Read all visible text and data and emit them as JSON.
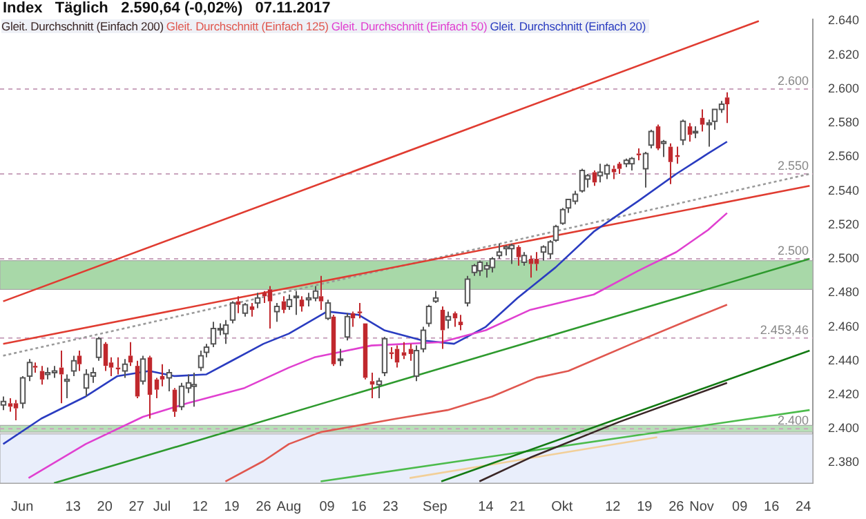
{
  "chart_data": {
    "type": "candlestick",
    "title": "Index   Täglich   2.590,64 (-0,02%)   07.11.2017",
    "colors": [
      "#ffffff",
      "#c0282d",
      "#c0282d",
      "#ffffff",
      "#ffffff",
      "#c0282d",
      "#c0282d",
      "#ffffff",
      "#ffffff",
      "#c0282d",
      "#ffffff",
      "#ffffff",
      "#c0282d",
      "#ffffff",
      "#ffffff",
      "#ffffff",
      "#c0282d",
      "#c0282d",
      "#c0282d",
      "#ffffff",
      "#c0282d",
      "#c0282d",
      "#ffffff",
      "#c0282d",
      "#c0282d",
      "#c0282d",
      "#ffffff",
      "#c0282d",
      "#ffffff",
      "#ffffff",
      "#ffffff",
      "#ffffff",
      "#ffffff",
      "#ffffff",
      "#ffffff",
      "#ffffff",
      "#ffffff",
      "#c0282d",
      "#ffffff",
      "#c0282d",
      "#ffffff",
      "#c0282d",
      "#c0282d",
      "#ffffff",
      "#c0282d",
      "#ffffff",
      "#ffffff",
      "#c0282d",
      "#ffffff",
      "#ffffff",
      "#c0282d",
      "#ffffff",
      "#c0282d",
      "#ffffff",
      "#ffffff",
      "#c0282d",
      "#c0282d",
      "#c0282d",
      "#c0282d",
      "#ffffff",
      "#ffffff",
      "#c0282d",
      "#c0282d",
      "#c0282d",
      "#c0282d",
      "#ffffff",
      "#ffffff",
      "#ffffff",
      "#ffffff",
      "#c0282d",
      "#ffffff",
      "#c0282d",
      "#c0282d",
      "#ffffff",
      "#ffffff",
      "#ffffff",
      "#ffffff",
      "#ffffff",
      "#ffffff",
      "#ffffff",
      "#ffffff",
      "#c0282d",
      "#ffffff",
      "#c0282d",
      "#c0282d",
      "#ffffff",
      "#ffffff",
      "#ffffff",
      "#ffffff",
      "#ffffff",
      "#ffffff",
      "#ffffff",
      "#ffffff",
      "#c0282d",
      "#ffffff",
      "#ffffff",
      "#c0282d",
      "#c0282d",
      "#ffffff",
      "#ffffff",
      "#c0282d",
      "#ffffff",
      "#ffffff",
      "#c0282d",
      "#ffffff",
      "#c0282d",
      "#c0282d",
      "#ffffff",
      "#c0282d",
      "#ffffff",
      "#c0282d",
      "#ffffff",
      "#ffffff",
      "#ffffff",
      "#c0282d",
      null,
      null,
      null,
      null,
      null,
      null,
      null,
      null,
      null,
      null,
      null,
      null,
      null
    ],
    "categories": [
      null,
      null,
      null,
      "Jun",
      null,
      null,
      null,
      null,
      null,
      null,
      null,
      "13",
      null,
      null,
      null,
      null,
      "20",
      null,
      null,
      null,
      null,
      "27",
      null,
      null,
      null,
      "Jul",
      null,
      null,
      null,
      null,
      null,
      "12",
      null,
      null,
      null,
      null,
      "19",
      null,
      null,
      null,
      null,
      "26",
      null,
      null,
      null,
      "Aug",
      null,
      null,
      null,
      null,
      null,
      "09",
      null,
      null,
      null,
      null,
      "16",
      null,
      null,
      null,
      null,
      "23",
      null,
      null,
      null,
      null,
      null,
      null,
      "Sep",
      null,
      null,
      null,
      null,
      null,
      null,
      null,
      "14",
      null,
      null,
      null,
      null,
      "21",
      null,
      null,
      null,
      null,
      null,
      null,
      "Okt",
      null,
      null,
      null,
      null,
      null,
      null,
      null,
      "12",
      null,
      null,
      null,
      null,
      "19",
      null,
      null,
      null,
      null,
      "26",
      null,
      null,
      null,
      "Nov",
      null,
      null,
      null,
      null,
      null,
      "09",
      null,
      null,
      null,
      null,
      "16",
      null,
      null,
      null,
      null,
      "24",
      null
    ],
    "ohlc": [
      [
        2414,
        2419,
        2411,
        2416
      ],
      [
        2415,
        2418,
        2410,
        2413
      ],
      [
        2415,
        2417,
        2405,
        2412
      ],
      [
        2415,
        2431,
        2412,
        2430
      ],
      [
        2431,
        2441,
        2428,
        2439
      ],
      [
        2437,
        2439,
        2433,
        2436
      ],
      [
        2434,
        2437,
        2426,
        2429
      ],
      [
        2432,
        2436,
        2429,
        2433
      ],
      [
        2433,
        2437,
        2430,
        2434
      ],
      [
        2436,
        2446,
        2415,
        2432
      ],
      [
        2428,
        2432,
        2418,
        2429
      ],
      [
        2434,
        2443,
        2431,
        2440
      ],
      [
        2443,
        2446,
        2434,
        2438
      ],
      [
        2424,
        2435,
        2419,
        2432
      ],
      [
        2431,
        2436,
        2427,
        2433
      ],
      [
        2442,
        2454,
        2440,
        2453
      ],
      [
        2450,
        2451,
        2434,
        2437
      ],
      [
        2439,
        2442,
        2431,
        2436
      ],
      [
        2436,
        2442,
        2432,
        2435
      ],
      [
        2434,
        2441,
        2430,
        2438
      ],
      [
        2443,
        2451,
        2437,
        2439
      ],
      [
        2437,
        2440,
        2418,
        2419
      ],
      [
        2428,
        2443,
        2426,
        2441
      ],
      [
        2442,
        2443,
        2406,
        2420
      ],
      [
        2429,
        2430,
        2418,
        2423
      ],
      [
        2431,
        2438,
        2425,
        2429
      ],
      [
        2430,
        2435,
        2422,
        2433
      ],
      [
        2423,
        2424,
        2407,
        2410
      ],
      [
        2413,
        2427,
        2411,
        2425
      ],
      [
        2424,
        2432,
        2421,
        2427
      ],
      [
        2425,
        2433,
        2413,
        2426
      ],
      [
        2436,
        2446,
        2434,
        2443
      ],
      [
        2445,
        2450,
        2442,
        2448
      ],
      [
        2450,
        2463,
        2448,
        2459
      ],
      [
        2459,
        2462,
        2455,
        2459
      ],
      [
        2456,
        2464,
        2450,
        2461
      ],
      [
        2464,
        2475,
        2462,
        2474
      ],
      [
        2475,
        2478,
        2468,
        2473
      ],
      [
        2468,
        2474,
        2466,
        2473
      ],
      [
        2472,
        2474,
        2466,
        2470
      ],
      [
        2474,
        2480,
        2471,
        2477
      ],
      [
        2480,
        2481,
        2474,
        2478
      ],
      [
        2482,
        2484,
        2459,
        2475
      ],
      [
        2469,
        2474,
        2463,
        2472
      ],
      [
        2475,
        2478,
        2468,
        2470
      ],
      [
        2472,
        2479,
        2470,
        2476
      ],
      [
        2478,
        2481,
        2467,
        2478
      ],
      [
        2476,
        2478,
        2469,
        2472
      ],
      [
        2476,
        2480,
        2472,
        2477
      ],
      [
        2477,
        2484,
        2475,
        2481
      ],
      [
        2478,
        2490,
        2470,
        2475
      ],
      [
        2465,
        2476,
        2464,
        2474
      ],
      [
        2466,
        2467,
        2437,
        2438
      ],
      [
        2441,
        2447,
        2437,
        2441
      ],
      [
        2454,
        2468,
        2452,
        2466
      ],
      [
        2468,
        2469,
        2460,
        2465
      ],
      [
        2469,
        2474,
        2465,
        2468
      ],
      [
        2462,
        2462,
        2429,
        2430
      ],
      [
        2428,
        2433,
        2418,
        2426
      ],
      [
        2426,
        2430,
        2418,
        2428
      ],
      [
        2433,
        2454,
        2431,
        2453
      ],
      [
        2445,
        2448,
        2441,
        2444
      ],
      [
        2447,
        2449,
        2436,
        2439
      ],
      [
        2445,
        2451,
        2441,
        2443
      ],
      [
        2447,
        2450,
        2440,
        2444
      ],
      [
        2431,
        2449,
        2428,
        2446
      ],
      [
        2447,
        2460,
        2445,
        2458
      ],
      [
        2462,
        2473,
        2460,
        2472
      ],
      [
        2475,
        2481,
        2474,
        2477
      ],
      [
        2470,
        2472,
        2447,
        2458
      ],
      [
        2464,
        2469,
        2459,
        2466
      ],
      [
        2468,
        2469,
        2460,
        2465
      ],
      [
        2463,
        2467,
        2458,
        2461
      ],
      [
        2474,
        2490,
        2472,
        2488
      ],
      [
        2492,
        2497,
        2490,
        2496
      ],
      [
        2493,
        2499,
        2490,
        2498
      ],
      [
        2494,
        2498,
        2489,
        2496
      ],
      [
        2495,
        2501,
        2492,
        2500
      ],
      [
        2502,
        2509,
        2500,
        2504
      ],
      [
        2506,
        2508,
        2502,
        2507
      ],
      [
        2506,
        2509,
        2497,
        2508
      ],
      [
        2507,
        2508,
        2496,
        2501
      ],
      [
        2498,
        2504,
        2496,
        2502
      ],
      [
        2500,
        2502,
        2489,
        2497
      ],
      [
        2500,
        2504,
        2493,
        2497
      ],
      [
        2504,
        2508,
        2499,
        2507
      ],
      [
        2503,
        2511,
        2500,
        2510
      ],
      [
        2511,
        2520,
        2510,
        2519
      ],
      [
        2521,
        2530,
        2520,
        2529
      ],
      [
        2530,
        2535,
        2527,
        2535
      ],
      [
        2534,
        2540,
        2532,
        2538
      ],
      [
        2540,
        2553,
        2539,
        2552
      ],
      [
        2547,
        2550,
        2542,
        2549
      ],
      [
        2551,
        2552,
        2543,
        2545
      ],
      [
        2549,
        2556,
        2545,
        2551
      ],
      [
        2550,
        2556,
        2547,
        2555
      ],
      [
        2553,
        2555,
        2547,
        2551
      ],
      [
        2556,
        2557,
        2550,
        2553
      ],
      [
        2556,
        2559,
        2554,
        2558
      ],
      [
        2556,
        2560,
        2552,
        2559
      ],
      [
        2562,
        2565,
        2558,
        2561
      ],
      [
        2553,
        2563,
        2542,
        2562
      ],
      [
        2567,
        2576,
        2565,
        2575
      ],
      [
        2578,
        2579,
        2564,
        2565
      ],
      [
        2568,
        2570,
        2560,
        2569
      ],
      [
        2566,
        2568,
        2544,
        2557
      ],
      [
        2561,
        2566,
        2556,
        2560
      ],
      [
        2570,
        2582,
        2567,
        2581
      ],
      [
        2578,
        2580,
        2569,
        2573
      ],
      [
        2575,
        2578,
        2571,
        2575
      ],
      [
        2583,
        2588,
        2575,
        2579
      ],
      [
        2579,
        2582,
        2566,
        2580
      ],
      [
        2581,
        2588,
        2576,
        2588
      ],
      [
        2588,
        2593,
        2586,
        2591
      ],
      [
        2595,
        2598,
        2580,
        2591
      ],
      null,
      null,
      null,
      null,
      null,
      null,
      null,
      null,
      null,
      null,
      null,
      null,
      null
    ],
    "series": [
      {
        "type": "line",
        "name": "Gleit. Durchschnitt (Einfach 200)",
        "color": "#3a2626",
        "values": [
          null,
          null,
          null,
          null,
          null,
          null,
          null,
          null,
          null,
          null,
          null,
          null,
          null,
          null,
          null,
          null,
          null,
          null,
          null,
          null,
          null,
          null,
          null,
          null,
          null,
          null,
          null,
          null,
          null,
          null,
          null,
          null,
          null,
          null,
          null,
          null,
          null,
          null,
          null,
          null,
          null,
          null,
          null,
          null,
          null,
          null,
          null,
          null,
          null,
          null,
          null,
          null,
          null,
          null,
          null,
          null,
          null,
          null,
          null,
          null,
          null,
          null,
          null,
          null,
          null,
          null,
          null,
          null,
          null,
          null,
          null,
          null,
          null,
          null,
          null,
          2369,
          null,
          null,
          null,
          null,
          null,
          null,
          null,
          2383,
          null,
          null,
          null,
          null,
          null,
          null,
          null,
          null,
          null,
          null,
          null,
          null,
          null,
          2404,
          null,
          null,
          null,
          null,
          null,
          null,
          null,
          null,
          null,
          null,
          null,
          null,
          null,
          null,
          null,
          null,
          2427,
          null,
          null,
          null,
          null,
          null,
          null,
          null,
          null,
          null,
          null,
          null,
          null,
          null
        ]
      },
      {
        "type": "line",
        "name": "Gleit. Durchschnitt (Einfach 125)",
        "color": "#e0574f",
        "values": [
          null,
          null,
          null,
          null,
          null,
          null,
          null,
          null,
          null,
          null,
          null,
          null,
          null,
          null,
          null,
          null,
          null,
          null,
          null,
          null,
          null,
          null,
          null,
          null,
          null,
          null,
          null,
          null,
          null,
          null,
          null,
          null,
          null,
          null,
          null,
          2369,
          null,
          null,
          null,
          null,
          null,
          2381,
          null,
          null,
          null,
          2391,
          null,
          null,
          null,
          null,
          2398,
          null,
          null,
          null,
          null,
          null,
          null,
          null,
          null,
          null,
          null,
          null,
          2406,
          null,
          null,
          null,
          null,
          null,
          null,
          null,
          2411,
          null,
          null,
          null,
          null,
          null,
          null,
          2419,
          null,
          null,
          null,
          null,
          null,
          null,
          2430,
          null,
          null,
          null,
          null,
          2434,
          null,
          null,
          null,
          null,
          null,
          null,
          null,
          null,
          null,
          2450,
          null,
          null,
          null,
          null,
          null,
          null,
          null,
          null,
          2464,
          null,
          null,
          null,
          null,
          null,
          2473,
          null,
          null,
          null,
          null,
          null,
          null,
          null,
          null,
          null,
          null,
          null,
          null,
          null
        ]
      },
      {
        "type": "line",
        "name": "Gleit. Durchschnitt (Einfach 50)",
        "color": "#e040d0",
        "values": [
          null,
          null,
          null,
          null,
          2371,
          null,
          null,
          null,
          null,
          null,
          null,
          null,
          null,
          2391,
          null,
          null,
          null,
          null,
          null,
          null,
          null,
          null,
          2407,
          null,
          null,
          null,
          null,
          null,
          null,
          2415,
          null,
          null,
          null,
          null,
          null,
          null,
          null,
          null,
          2424,
          null,
          null,
          null,
          null,
          null,
          null,
          2436,
          null,
          null,
          null,
          2442,
          null,
          null,
          null,
          null,
          null,
          null,
          null,
          null,
          2449,
          null,
          null,
          null,
          null,
          null,
          null,
          null,
          null,
          null,
          null,
          2451,
          null,
          null,
          null,
          null,
          null,
          null,
          2458,
          null,
          null,
          null,
          null,
          null,
          null,
          2470,
          null,
          null,
          null,
          null,
          null,
          null,
          null,
          null,
          null,
          2479,
          null,
          null,
          null,
          null,
          null,
          null,
          2493,
          null,
          null,
          null,
          null,
          null,
          2504,
          null,
          null,
          null,
          null,
          2517,
          null,
          null,
          2527,
          null,
          null,
          null,
          null,
          null,
          null,
          null,
          null,
          null,
          null,
          null,
          null,
          null
        ]
      },
      {
        "type": "line",
        "name": "Gleit. Durchschnitt (Einfach 20)",
        "color": "#2a3cc0",
        "values": [
          2391,
          null,
          null,
          null,
          null,
          null,
          2406,
          null,
          null,
          null,
          null,
          null,
          null,
          2419,
          null,
          null,
          null,
          null,
          2431,
          null,
          null,
          null,
          null,
          2434,
          null,
          null,
          null,
          2431,
          null,
          null,
          null,
          null,
          2432,
          null,
          null,
          null,
          2440,
          null,
          null,
          null,
          null,
          2450,
          null,
          null,
          null,
          2456,
          null,
          null,
          null,
          null,
          null,
          2469,
          null,
          null,
          null,
          null,
          2467,
          null,
          null,
          null,
          2458,
          null,
          null,
          null,
          null,
          null,
          2452,
          null,
          null,
          null,
          null,
          2450,
          null,
          null,
          null,
          null,
          2460,
          null,
          null,
          null,
          null,
          2477,
          null,
          null,
          null,
          null,
          null,
          2495,
          null,
          null,
          null,
          null,
          null,
          2516,
          null,
          null,
          null,
          null,
          null,
          null,
          2534,
          null,
          null,
          null,
          null,
          null,
          2550,
          null,
          null,
          null,
          null,
          2562,
          null,
          null,
          2569,
          null,
          null,
          null,
          null,
          null,
          null,
          null,
          null,
          null,
          null,
          null,
          null,
          null
        ]
      },
      {
        "type": "line",
        "color": "#e03c31",
        "values": [
          2475,
          null,
          null,
          null,
          null,
          null,
          null,
          null,
          null,
          null,
          null,
          null,
          null,
          null,
          null,
          null,
          null,
          null,
          null,
          null,
          null,
          null,
          null,
          null,
          null,
          null,
          null,
          null,
          null,
          null,
          null,
          null,
          null,
          null,
          null,
          null,
          null,
          null,
          null,
          null,
          null,
          null,
          null,
          null,
          null,
          null,
          null,
          null,
          null,
          null,
          null,
          null,
          null,
          null,
          null,
          null,
          null,
          null,
          null,
          null,
          null,
          null,
          null,
          null,
          null,
          null,
          null,
          null,
          null,
          null,
          null,
          null,
          null,
          null,
          null,
          null,
          null,
          null,
          null,
          null,
          null,
          null,
          null,
          null,
          null,
          null,
          null,
          null,
          null,
          null,
          null,
          null,
          null,
          null,
          null,
          null,
          null,
          null,
          null,
          null,
          null,
          null,
          null,
          null,
          null,
          null,
          null,
          null,
          null,
          null,
          null,
          null,
          null,
          null,
          null,
          null,
          null,
          null,
          null,
          2640,
          null,
          null,
          null,
          null,
          null,
          null,
          null,
          null
        ]
      },
      {
        "type": "line",
        "color": "#e03c31",
        "values": [
          2450,
          null,
          null,
          null,
          null,
          null,
          null,
          null,
          null,
          null,
          null,
          null,
          null,
          null,
          null,
          null,
          null,
          null,
          null,
          null,
          null,
          null,
          null,
          null,
          null,
          null,
          null,
          null,
          null,
          null,
          null,
          null,
          null,
          null,
          null,
          null,
          null,
          null,
          null,
          null,
          null,
          null,
          null,
          null,
          null,
          null,
          null,
          null,
          null,
          null,
          null,
          null,
          null,
          null,
          null,
          null,
          null,
          null,
          null,
          null,
          null,
          null,
          null,
          null,
          null,
          null,
          null,
          null,
          null,
          null,
          null,
          null,
          null,
          null,
          null,
          null,
          null,
          null,
          null,
          null,
          null,
          null,
          null,
          null,
          null,
          null,
          null,
          null,
          null,
          null,
          null,
          null,
          null,
          null,
          null,
          null,
          null,
          null,
          null,
          null,
          null,
          null,
          null,
          null,
          null,
          null,
          null,
          null,
          null,
          null,
          null,
          null,
          null,
          null,
          null,
          null,
          null,
          null,
          null,
          null,
          null,
          null,
          null,
          null,
          null,
          null,
          null,
          2543
        ]
      },
      {
        "type": "line",
        "color": "#9a9a9a",
        "line_style": "dotted",
        "values": [
          2443,
          null,
          null,
          null,
          null,
          null,
          null,
          null,
          null,
          null,
          null,
          null,
          null,
          null,
          null,
          null,
          null,
          null,
          null,
          null,
          null,
          null,
          null,
          null,
          null,
          null,
          null,
          null,
          null,
          null,
          null,
          null,
          null,
          null,
          null,
          null,
          null,
          null,
          null,
          null,
          null,
          null,
          null,
          null,
          null,
          null,
          null,
          null,
          null,
          null,
          null,
          null,
          null,
          null,
          null,
          null,
          null,
          null,
          null,
          null,
          null,
          null,
          null,
          null,
          null,
          null,
          null,
          null,
          null,
          null,
          null,
          null,
          null,
          null,
          null,
          null,
          null,
          null,
          null,
          null,
          null,
          null,
          null,
          null,
          null,
          null,
          null,
          null,
          null,
          null,
          null,
          null,
          null,
          null,
          null,
          null,
          null,
          null,
          null,
          null,
          null,
          null,
          null,
          null,
          null,
          null,
          null,
          null,
          null,
          null,
          null,
          null,
          null,
          null,
          null,
          null,
          null,
          null,
          null,
          null,
          null,
          null,
          null,
          null,
          null,
          null,
          null,
          2550
        ]
      },
      {
        "type": "line",
        "color": "#2e9a2e",
        "values": [
          null,
          null,
          null,
          null,
          null,
          null,
          null,
          null,
          2368,
          null,
          null,
          null,
          null,
          null,
          null,
          null,
          null,
          null,
          null,
          null,
          null,
          null,
          null,
          null,
          null,
          null,
          null,
          null,
          null,
          null,
          null,
          null,
          null,
          null,
          null,
          null,
          null,
          null,
          null,
          null,
          null,
          null,
          null,
          null,
          null,
          null,
          null,
          null,
          null,
          null,
          null,
          null,
          null,
          null,
          null,
          null,
          null,
          null,
          null,
          null,
          null,
          null,
          null,
          null,
          null,
          null,
          null,
          null,
          null,
          null,
          null,
          null,
          null,
          null,
          null,
          null,
          null,
          null,
          null,
          null,
          null,
          null,
          null,
          null,
          null,
          null,
          null,
          null,
          null,
          null,
          null,
          null,
          null,
          null,
          null,
          null,
          null,
          null,
          null,
          null,
          null,
          null,
          null,
          null,
          null,
          null,
          null,
          null,
          null,
          null,
          null,
          null,
          null,
          null,
          null,
          null,
          null,
          null,
          null,
          null,
          null,
          null,
          null,
          null,
          null,
          null,
          null,
          2500
        ]
      },
      {
        "type": "line",
        "color": "#137a13",
        "values": [
          null,
          null,
          null,
          null,
          null,
          null,
          null,
          null,
          null,
          null,
          null,
          null,
          null,
          null,
          null,
          null,
          null,
          null,
          null,
          null,
          null,
          null,
          null,
          null,
          null,
          null,
          null,
          null,
          null,
          null,
          null,
          null,
          null,
          null,
          null,
          null,
          null,
          null,
          null,
          null,
          null,
          null,
          null,
          null,
          null,
          null,
          null,
          null,
          null,
          null,
          null,
          null,
          null,
          null,
          null,
          null,
          null,
          null,
          null,
          null,
          null,
          null,
          null,
          null,
          null,
          null,
          null,
          null,
          null,
          2369,
          null,
          null,
          null,
          null,
          null,
          null,
          null,
          null,
          null,
          null,
          null,
          null,
          null,
          null,
          null,
          null,
          null,
          null,
          null,
          null,
          null,
          null,
          null,
          null,
          null,
          null,
          null,
          null,
          null,
          null,
          null,
          null,
          null,
          null,
          null,
          null,
          null,
          null,
          null,
          null,
          null,
          null,
          null,
          null,
          null,
          null,
          null,
          null,
          null,
          null,
          null,
          null,
          null,
          null,
          null,
          null,
          null,
          2446
        ]
      },
      {
        "type": "line",
        "color": "#4cbb4c",
        "values": [
          null,
          null,
          null,
          null,
          null,
          null,
          null,
          null,
          null,
          null,
          null,
          null,
          null,
          null,
          null,
          null,
          null,
          null,
          null,
          null,
          null,
          null,
          null,
          null,
          null,
          null,
          null,
          null,
          null,
          null,
          null,
          null,
          null,
          null,
          null,
          null,
          null,
          null,
          null,
          null,
          null,
          null,
          null,
          null,
          null,
          null,
          null,
          null,
          null,
          null,
          2369,
          null,
          null,
          null,
          null,
          null,
          null,
          null,
          null,
          null,
          null,
          null,
          null,
          null,
          null,
          null,
          null,
          null,
          null,
          null,
          null,
          null,
          null,
          null,
          null,
          null,
          null,
          null,
          null,
          null,
          null,
          null,
          null,
          null,
          null,
          null,
          null,
          null,
          null,
          null,
          null,
          null,
          null,
          null,
          null,
          null,
          null,
          null,
          null,
          null,
          null,
          null,
          null,
          null,
          null,
          null,
          null,
          null,
          null,
          null,
          null,
          null,
          null,
          null,
          null,
          null,
          null,
          null,
          null,
          null,
          null,
          null,
          null,
          null,
          null,
          null,
          null,
          2411
        ]
      },
      {
        "type": "line",
        "color": "#f2cf98",
        "values": [
          null,
          null,
          null,
          null,
          null,
          null,
          null,
          null,
          null,
          null,
          null,
          null,
          null,
          null,
          null,
          null,
          null,
          null,
          null,
          null,
          null,
          null,
          null,
          null,
          null,
          null,
          null,
          null,
          null,
          null,
          null,
          null,
          null,
          null,
          null,
          null,
          null,
          null,
          null,
          null,
          null,
          null,
          null,
          null,
          null,
          null,
          null,
          null,
          null,
          null,
          null,
          null,
          null,
          null,
          null,
          null,
          null,
          null,
          null,
          null,
          null,
          null,
          null,
          null,
          2371,
          null,
          null,
          null,
          null,
          null,
          null,
          null,
          null,
          null,
          null,
          null,
          null,
          null,
          null,
          null,
          null,
          null,
          null,
          null,
          null,
          null,
          null,
          null,
          null,
          null,
          null,
          null,
          null,
          null,
          null,
          null,
          null,
          null,
          null,
          null,
          null,
          null,
          null,
          2395,
          null,
          null,
          null,
          null,
          null,
          null,
          null,
          null,
          null,
          null,
          null,
          null,
          null,
          null,
          null,
          null,
          null,
          null,
          null,
          null,
          null,
          null,
          null,
          null
        ]
      }
    ],
    "ylim": [
      2368,
      2641
    ],
    "yticks": [
      {
        "value": 2380,
        "label": "2.380"
      },
      {
        "value": 2400,
        "label": "2.400"
      },
      {
        "value": 2420,
        "label": "2.420"
      },
      {
        "value": 2440,
        "label": "2.440"
      },
      {
        "value": 2460,
        "label": "2.460"
      },
      {
        "value": 2480,
        "label": "2.480"
      },
      {
        "value": 2500,
        "label": "2.500"
      },
      {
        "value": 2520,
        "label": "2.520"
      },
      {
        "value": 2540,
        "label": "2.540"
      },
      {
        "value": 2560,
        "label": "2.560"
      },
      {
        "value": 2580,
        "label": "2.580"
      },
      {
        "value": 2600,
        "label": "2.600"
      },
      {
        "value": 2620,
        "label": "2.620"
      },
      {
        "value": 2640,
        "label": "2.640"
      }
    ],
    "ref_lines": [
      {
        "axis": "y",
        "value": 2600,
        "label": "2.600",
        "color": "#c9a3bd"
      },
      {
        "axis": "y",
        "value": 2550,
        "label": "2.550",
        "color": "#c9a3bd"
      },
      {
        "axis": "y",
        "value": 2500,
        "label": "2.500",
        "color": "#c9a3bd"
      },
      {
        "axis": "y",
        "value": 2453.46,
        "label": "2.453,46",
        "color": "#c9a3bd"
      },
      {
        "axis": "y",
        "value": 2400,
        "label": "2.400",
        "color": "#c9a3bd"
      }
    ],
    "bands": [
      {
        "axis": "y",
        "from": 2482,
        "to": 2499,
        "color": "#a8d8a8"
      },
      {
        "axis": "y",
        "from": 2398,
        "to": 2402,
        "color": "#b8e0b8"
      },
      {
        "axis": "y",
        "from": 2368,
        "to": 2397,
        "color": "#e9eefb"
      }
    ],
    "legend": "top left"
  }
}
